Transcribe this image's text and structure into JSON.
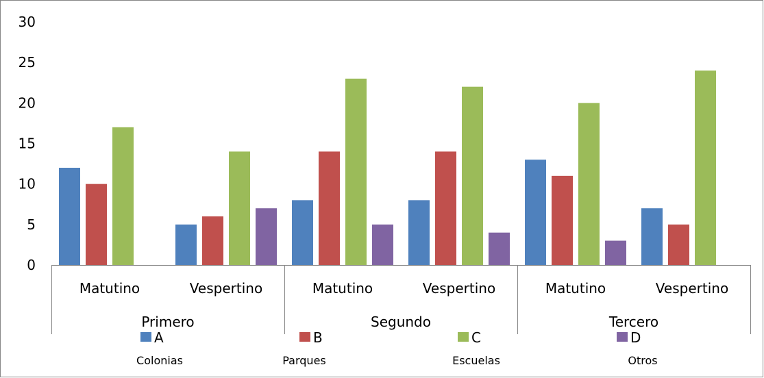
{
  "chart_data": {
    "type": "bar",
    "title": "",
    "xlabel": "",
    "ylabel": "",
    "ylim": [
      0,
      30
    ],
    "yticks": [
      "0",
      "5",
      "10",
      "15",
      "20",
      "25",
      "30"
    ],
    "groups": [
      "Primero",
      "Segundo",
      "Tercero"
    ],
    "categories": [
      "Matutino",
      "Vespertino",
      "Matutino",
      "Vespertino",
      "Matutino",
      "Vespertino"
    ],
    "series": [
      {
        "name": "A",
        "color": "#4f81bd",
        "values": [
          12,
          5,
          8,
          8,
          13,
          7
        ]
      },
      {
        "name": "B",
        "color": "#c0504d",
        "values": [
          10,
          6,
          14,
          14,
          11,
          5
        ]
      },
      {
        "name": "C",
        "color": "#9bbb59",
        "values": [
          17,
          14,
          23,
          22,
          20,
          24
        ]
      },
      {
        "name": "D",
        "color": "#8064a2",
        "values": [
          0,
          7,
          5,
          4,
          3,
          0
        ]
      }
    ],
    "grid": false,
    "legend_position": "bottom",
    "series_descriptions": [
      "Colonias",
      "Parques",
      "Escuelas",
      "Otros"
    ]
  }
}
